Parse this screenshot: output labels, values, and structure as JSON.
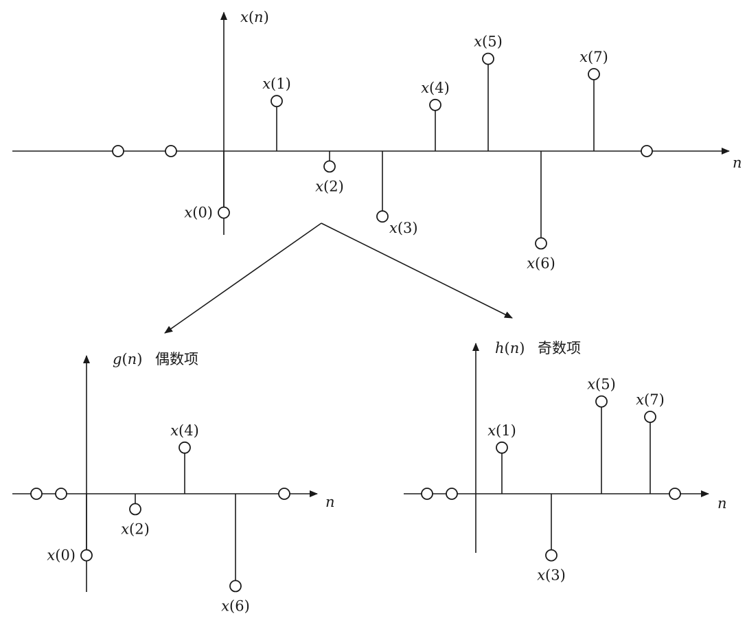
{
  "chart_data": [
    {
      "type": "stem",
      "id": "original",
      "title_func": "x",
      "title_var": "n",
      "title_suffix": "",
      "xlabel": "n",
      "stems": [
        {
          "n": -2,
          "value": 0,
          "label": ""
        },
        {
          "n": -1,
          "value": 0,
          "label": ""
        },
        {
          "n": 0,
          "value": -0.8,
          "label": "x(0)"
        },
        {
          "n": 1,
          "value": 0.65,
          "label": "x(1)"
        },
        {
          "n": 2,
          "value": -0.2,
          "label": "x(2)"
        },
        {
          "n": 3,
          "value": -0.85,
          "label": "x(3)"
        },
        {
          "n": 4,
          "value": 0.6,
          "label": "x(4)"
        },
        {
          "n": 5,
          "value": 1.2,
          "label": "x(5)"
        },
        {
          "n": 6,
          "value": -1.2,
          "label": "x(6)"
        },
        {
          "n": 7,
          "value": 1.0,
          "label": "x(7)"
        },
        {
          "n": 8,
          "value": 0,
          "label": ""
        }
      ]
    },
    {
      "type": "stem",
      "id": "even",
      "title_func": "g",
      "title_var": "n",
      "title_suffix": "偶数项",
      "xlabel": "n",
      "stems": [
        {
          "n": -2,
          "value": 0,
          "label": ""
        },
        {
          "n": -1,
          "value": 0,
          "label": ""
        },
        {
          "n": 0,
          "value": -0.8,
          "label": "x(0)"
        },
        {
          "n": 1,
          "value": -0.2,
          "label": "x(2)"
        },
        {
          "n": 2,
          "value": 0.6,
          "label": "x(4)"
        },
        {
          "n": 3,
          "value": -1.2,
          "label": "x(6)"
        },
        {
          "n": 4,
          "value": 0,
          "label": ""
        }
      ]
    },
    {
      "type": "stem",
      "id": "odd",
      "title_func": "h",
      "title_var": "n",
      "title_suffix": "奇数项",
      "xlabel": "n",
      "stems": [
        {
          "n": -2,
          "value": 0,
          "label": ""
        },
        {
          "n": -1,
          "value": 0,
          "label": ""
        },
        {
          "n": 0,
          "value": 0.6,
          "label": "x(1)"
        },
        {
          "n": 1,
          "value": -0.8,
          "label": "x(3)"
        },
        {
          "n": 2,
          "value": 1.2,
          "label": "x(5)"
        },
        {
          "n": 3,
          "value": 1.0,
          "label": "x(7)"
        },
        {
          "n": 4,
          "value": 0,
          "label": ""
        }
      ]
    }
  ]
}
